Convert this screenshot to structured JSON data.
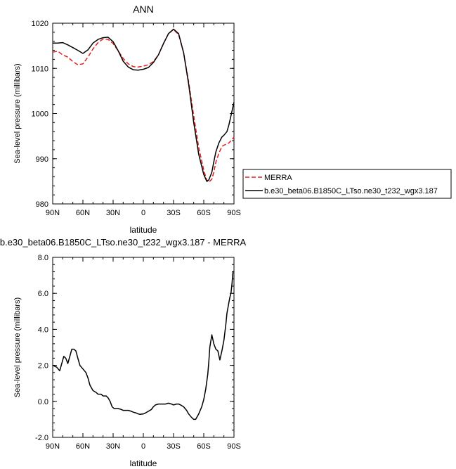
{
  "chart_data": [
    {
      "type": "line",
      "title": "ANN",
      "xlabel": "latitude",
      "ylabel": "Sea-level pressure (millibars)",
      "xlim": [
        90,
        -90
      ],
      "ylim": [
        980,
        1020
      ],
      "xticks": [
        {
          "x": 90,
          "label": "90N"
        },
        {
          "x": 60,
          "label": "60N"
        },
        {
          "x": 30,
          "label": "30N"
        },
        {
          "x": 0,
          "label": "0"
        },
        {
          "x": -30,
          "label": "30S"
        },
        {
          "x": -60,
          "label": "60S"
        },
        {
          "x": -90,
          "label": "90S"
        }
      ],
      "yticks": [
        {
          "y": 1020,
          "label": "1020"
        },
        {
          "y": 1010,
          "label": "1010"
        },
        {
          "y": 1000,
          "label": "1000"
        },
        {
          "y": 990,
          "label": "990"
        },
        {
          "y": 980,
          "label": "980"
        }
      ],
      "legend_position": "right",
      "series": [
        {
          "name": "MERRA",
          "color": "#e02020",
          "dash": true,
          "x": [
            90,
            85,
            80,
            75,
            70,
            65,
            60,
            55,
            50,
            45,
            40,
            35,
            30,
            25,
            20,
            15,
            10,
            5,
            0,
            -5,
            -10,
            -15,
            -20,
            -25,
            -30,
            -35,
            -40,
            -45,
            -50,
            -55,
            -60,
            -63,
            -65,
            -68,
            -70,
            -72,
            -75,
            -78,
            -80,
            -83,
            -85,
            -87,
            -90
          ],
          "y": [
            1013.6,
            1013.8,
            1013.0,
            1012.5,
            1011.5,
            1010.8,
            1011.0,
            1012.5,
            1014.3,
            1015.7,
            1016.5,
            1016.4,
            1015.5,
            1013.9,
            1012.2,
            1011.0,
            1010.4,
            1010.3,
            1010.5,
            1010.8,
            1011.5,
            1013.0,
            1015.5,
            1017.7,
            1018.6,
            1017.5,
            1013.5,
            1007.0,
            999.5,
            992.5,
            987.5,
            985.2,
            984.8,
            985.5,
            987.0,
            989.2,
            991.2,
            992.7,
            993.0,
            993.3,
            993.5,
            994.0,
            994.8
          ]
        },
        {
          "name": "b.e30_beta06.B1850C_LTso.ne30_t232_wgx3.187",
          "color": "#000000",
          "dash": false,
          "x": [
            90,
            85,
            80,
            75,
            70,
            65,
            60,
            55,
            50,
            45,
            40,
            35,
            30,
            25,
            20,
            15,
            10,
            5,
            0,
            -5,
            -10,
            -15,
            -20,
            -25,
            -30,
            -35,
            -40,
            -45,
            -50,
            -55,
            -60,
            -63,
            -65,
            -68,
            -70,
            -72,
            -75,
            -78,
            -80,
            -83,
            -85,
            -87,
            -90
          ],
          "y": [
            1015.6,
            1015.6,
            1015.7,
            1015.2,
            1014.6,
            1014.0,
            1013.3,
            1014.1,
            1015.6,
            1016.4,
            1016.8,
            1016.9,
            1015.9,
            1013.9,
            1011.6,
            1010.3,
            1009.7,
            1009.6,
            1009.8,
            1010.2,
            1011.3,
            1013.0,
            1015.5,
            1017.7,
            1018.7,
            1017.7,
            1013.5,
            1006.5,
            998.0,
            991.0,
            986.5,
            985.0,
            985.3,
            987.0,
            989.3,
            991.5,
            993.5,
            994.8,
            995.2,
            996.0,
            997.5,
            999.5,
            1002.5
          ]
        }
      ]
    },
    {
      "type": "line",
      "title": "b.e30_beta06.B1850C_LTso.ne30_t232_wgx3.187 - MERRA",
      "xlabel": "latitude",
      "ylabel": "Sea-level pressure (millibars)",
      "xlim": [
        90,
        -90
      ],
      "ylim": [
        -2,
        8
      ],
      "xticks": [
        {
          "x": 90,
          "label": "90N"
        },
        {
          "x": 60,
          "label": "60N"
        },
        {
          "x": 30,
          "label": "30N"
        },
        {
          "x": 0,
          "label": "0"
        },
        {
          "x": -30,
          "label": "30S"
        },
        {
          "x": -60,
          "label": "60S"
        },
        {
          "x": -90,
          "label": "90S"
        }
      ],
      "yticks": [
        {
          "y": 8,
          "label": "8.0"
        },
        {
          "y": 6,
          "label": "6.0"
        },
        {
          "y": 4,
          "label": "4.0"
        },
        {
          "y": 2,
          "label": "2.0"
        },
        {
          "y": 0,
          "label": "0.0"
        },
        {
          "y": -2,
          "label": "-2.0"
        }
      ],
      "series": [
        {
          "color": "#000000",
          "dash": false,
          "x": [
            90,
            86,
            83,
            81,
            79,
            77,
            75,
            73,
            71,
            69,
            67,
            65,
            63,
            60,
            57,
            55,
            53,
            50,
            47,
            45,
            42,
            40,
            37,
            35,
            33,
            31,
            29,
            27,
            25,
            22,
            20,
            17,
            15,
            12,
            10,
            7,
            5,
            3,
            1,
            0,
            -2,
            -5,
            -8,
            -10,
            -12,
            -15,
            -18,
            -20,
            -22,
            -25,
            -28,
            -30,
            -33,
            -35,
            -37,
            -40,
            -43,
            -45,
            -48,
            -50,
            -52,
            -55,
            -58,
            -60,
            -62,
            -64,
            -65,
            -66,
            -68,
            -70,
            -72,
            -74,
            -76,
            -78,
            -80,
            -82,
            -83,
            -84,
            -85,
            -86,
            -87,
            -88,
            -89,
            -90
          ],
          "y": [
            2.0,
            1.9,
            1.7,
            2.1,
            2.5,
            2.4,
            2.1,
            2.5,
            2.9,
            2.9,
            2.8,
            2.4,
            2.0,
            1.8,
            1.6,
            1.3,
            0.9,
            0.6,
            0.5,
            0.4,
            0.4,
            0.3,
            0.3,
            0.2,
            0.0,
            -0.3,
            -0.4,
            -0.4,
            -0.4,
            -0.45,
            -0.5,
            -0.5,
            -0.5,
            -0.55,
            -0.6,
            -0.65,
            -0.7,
            -0.72,
            -0.7,
            -0.7,
            -0.65,
            -0.55,
            -0.45,
            -0.3,
            -0.2,
            -0.15,
            -0.15,
            -0.15,
            -0.15,
            -0.1,
            -0.15,
            -0.2,
            -0.15,
            -0.15,
            -0.2,
            -0.3,
            -0.5,
            -0.7,
            -0.9,
            -1.0,
            -1.0,
            -0.7,
            -0.3,
            0.1,
            0.7,
            1.5,
            2.2,
            3.0,
            3.7,
            3.2,
            2.9,
            2.8,
            2.3,
            2.8,
            3.4,
            4.3,
            4.9,
            5.2,
            5.5,
            5.8,
            6.0,
            6.5,
            7.2,
            7.2
          ]
        }
      ]
    }
  ]
}
